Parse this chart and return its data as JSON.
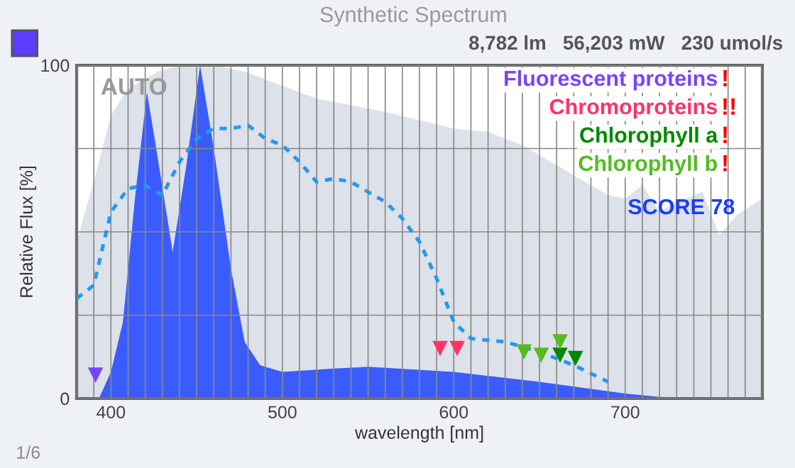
{
  "chart_data": {
    "type": "area",
    "title": "Synthetic Spectrum",
    "subtitle": "8,782 lm   56,203 mW   230 umol/s",
    "xlabel": "wavelength [nm]",
    "ylabel": "Relative Flux [%]",
    "xlim": [
      380,
      780
    ],
    "ylim": [
      0,
      100
    ],
    "xticks": [
      {
        "value": 380,
        "label": null
      },
      {
        "value": 390,
        "label": null
      },
      400,
      {
        "value": 410,
        "label": null
      },
      {
        "value": 420,
        "label": null
      },
      {
        "value": 430,
        "label": null
      },
      {
        "value": 440,
        "label": null
      },
      {
        "value": 450,
        "label": null
      },
      {
        "value": 460,
        "label": null
      },
      {
        "value": 470,
        "label": null
      },
      {
        "value": 480,
        "label": null
      },
      {
        "value": 490,
        "label": null
      },
      500,
      {
        "value": 510,
        "label": null
      },
      {
        "value": 520,
        "label": null
      },
      {
        "value": 530,
        "label": null
      },
      {
        "value": 540,
        "label": null
      },
      {
        "value": 550,
        "label": null
      },
      {
        "value": 560,
        "label": null
      },
      {
        "value": 570,
        "label": null
      },
      {
        "value": 580,
        "label": null
      },
      {
        "value": 590,
        "label": null
      },
      600,
      {
        "value": 610,
        "label": null
      },
      {
        "value": 620,
        "label": null
      },
      {
        "value": 630,
        "label": null
      },
      {
        "value": 640,
        "label": null
      },
      {
        "value": 650,
        "label": null
      },
      {
        "value": 660,
        "label": null
      },
      {
        "value": 670,
        "label": null
      },
      {
        "value": 680,
        "label": null
      },
      {
        "value": 690,
        "label": null
      },
      700,
      {
        "value": 710,
        "label": null
      },
      {
        "value": 720,
        "label": null
      },
      {
        "value": 730,
        "label": null
      },
      {
        "value": 740,
        "label": null
      },
      {
        "value": 750,
        "label": null
      },
      {
        "value": 760,
        "label": null
      },
      {
        "value": 770,
        "label": null
      },
      {
        "value": 780,
        "label": null
      }
    ],
    "yticks": [
      0,
      {
        "value": 25,
        "label": null
      },
      {
        "value": 50,
        "label": null
      },
      {
        "value": 75,
        "label": null
      },
      100
    ],
    "grid": true,
    "legend": "top right",
    "series": [
      {
        "color": "#dde1e9",
        "x": [
          380,
          391,
          400,
          410,
          427,
          440,
          460,
          479,
          499,
          520,
          560,
          600,
          620,
          640,
          660,
          670,
          690,
          700,
          710,
          720,
          730,
          745,
          755,
          765,
          780
        ],
        "values": [
          47,
          67,
          85,
          93,
          98,
          100,
          100,
          98,
          94,
          90,
          86,
          81,
          80,
          76,
          70,
          67,
          61,
          60,
          64,
          56,
          59,
          62,
          49,
          55,
          60
        ]
      },
      {
        "color": "#3a5cff",
        "x": [
          393,
          400,
          407,
          414,
          421,
          428,
          436,
          444,
          452,
          460,
          470,
          478,
          487,
          500,
          530,
          550,
          600,
          650,
          700,
          720,
          750
        ],
        "values": [
          0,
          8,
          23,
          60,
          92,
          70,
          44,
          70,
          100,
          75,
          39,
          17,
          10,
          8,
          9,
          9.5,
          8,
          5,
          1.5,
          0.5,
          0
        ]
      },
      {
        "type": "line",
        "color": "#2299ee",
        "line_style": "dashed",
        "x": [
          380,
          390,
          400,
          410,
          420,
          430,
          440,
          450,
          460,
          470,
          480,
          490,
          500,
          510,
          520,
          530,
          540,
          560,
          570,
          580,
          590,
          600,
          610,
          630,
          650,
          670,
          690
        ],
        "values": [
          30,
          34,
          56,
          63,
          64,
          61,
          71,
          78,
          81,
          81,
          82,
          78,
          76,
          71,
          65,
          66,
          65,
          59,
          54,
          47,
          36,
          23,
          18,
          17,
          14,
          10,
          5
        ]
      },
      {
        "type": "scatter",
        "name": "Fluorescent proteins",
        "color": "#7744ff",
        "marker": "triangle",
        "x": [
          391
        ],
        "values": [
          7
        ]
      },
      {
        "type": "scatter",
        "name": "Chromoproteins",
        "color": "#ff3366",
        "marker": "triangle",
        "x": [
          592,
          602
        ],
        "values": [
          15,
          15
        ]
      },
      {
        "type": "scatter",
        "name": "Chlorophyll a",
        "color": "#008800",
        "marker": "triangle",
        "x": [
          662,
          671
        ],
        "values": [
          13,
          12
        ]
      },
      {
        "type": "scatter",
        "name": "Chlorophyll b",
        "color": "#55bb22",
        "marker": "triangle",
        "x": [
          641,
          651,
          662
        ],
        "values": [
          14,
          13,
          17
        ]
      }
    ],
    "annotations": [
      "!",
      "!!",
      "!",
      "!",
      "AUTO",
      "SCORE 78",
      "1/6"
    ]
  }
}
